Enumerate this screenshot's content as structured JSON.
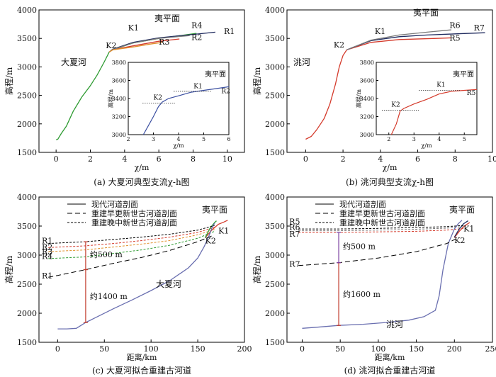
{
  "chart_data": [
    {
      "id": "a",
      "type": "line",
      "caption": "(a) 大夏河典型支流χ-h图",
      "xlabel": "χ/m",
      "ylabel": "高程/m",
      "xlim": [
        -1,
        11
      ],
      "ylim": [
        1500,
        4000
      ],
      "xticks": [
        0,
        2,
        4,
        6,
        8,
        10
      ],
      "yticks": [
        1500,
        2000,
        2500,
        3000,
        3500,
        4000
      ],
      "river_label": "大夏河",
      "surface_label": "夷平面",
      "series": [
        {
          "name": "",
          "color": "#2e9b32",
          "x": [
            0,
            0.1,
            0.3,
            0.6,
            1.0,
            1.5,
            2.0,
            2.4,
            2.8,
            3.1,
            3.3,
            4.5,
            6.0,
            7.5,
            8.2
          ],
          "y": [
            1720,
            1730,
            1830,
            1960,
            2220,
            2470,
            2670,
            2860,
            3080,
            3260,
            3300,
            3420,
            3500,
            3560,
            3590
          ]
        },
        {
          "name": "",
          "color": "#1f2a5e",
          "x": [
            3.1,
            3.3,
            4.5,
            6.0,
            8.0,
            9.3
          ],
          "y": [
            3260,
            3310,
            3430,
            3510,
            3570,
            3610
          ]
        },
        {
          "name": "",
          "color": "#d43a2b",
          "x": [
            3.1,
            3.3,
            4.5,
            6.0,
            7.2
          ],
          "y": [
            3260,
            3300,
            3370,
            3450,
            3490
          ]
        },
        {
          "name": "",
          "color": "#7a7a7a",
          "x": [
            3.1,
            3.3,
            4.5,
            6.0,
            7.8
          ],
          "y": [
            3260,
            3305,
            3420,
            3500,
            3550
          ]
        },
        {
          "name": "",
          "color": "#e08f2a",
          "x": [
            3.1,
            3.3,
            4.5,
            5.5,
            6.2
          ],
          "y": [
            3260,
            3300,
            3350,
            3400,
            3430
          ]
        }
      ],
      "labels": [
        {
          "text": "K1",
          "x": 4.2,
          "y": 3640
        },
        {
          "text": "K2",
          "x": 2.9,
          "y": 3330
        },
        {
          "text": "R1",
          "x": 9.8,
          "y": 3580
        },
        {
          "text": "R2",
          "x": 7.9,
          "y": 3470
        },
        {
          "text": "R3",
          "x": 6.0,
          "y": 3390
        },
        {
          "text": "R4",
          "x": 7.9,
          "y": 3680
        }
      ],
      "inset": {
        "xlabel": "χ/m",
        "ylabel": "高程/m",
        "xlim": [
          2,
          6
        ],
        "ylim": [
          3000,
          3800
        ],
        "xticks": [
          2,
          3,
          4,
          5,
          6
        ],
        "yticks": [
          3000,
          3200,
          3400,
          3600,
          3800
        ],
        "surface_label": "夷平面",
        "line": {
          "x": [
            2.6,
            2.8,
            3.0,
            3.2,
            3.35,
            3.6,
            4.0,
            4.5,
            5.0,
            5.5,
            6.0
          ],
          "y": [
            3000,
            3100,
            3200,
            3310,
            3360,
            3400,
            3430,
            3470,
            3490,
            3510,
            3530
          ]
        },
        "k2_ref_y": 3350,
        "k1_ref_y": 3480,
        "labels": [
          {
            "text": "K2",
            "x": 3.0,
            "y": 3390
          },
          {
            "text": "K1",
            "x": 4.6,
            "y": 3515
          },
          {
            "text": "R2",
            "x": 5.7,
            "y": 3460
          }
        ]
      }
    },
    {
      "id": "b",
      "type": "line",
      "caption": "(b) 洮河典型支流χ-h图",
      "xlabel": "χ/m",
      "ylabel": "高程/m",
      "xlim": [
        -1,
        10
      ],
      "ylim": [
        1500,
        4000
      ],
      "xticks": [
        0,
        2,
        4,
        6,
        8,
        10
      ],
      "yticks": [
        1500,
        2000,
        2500,
        3000,
        3500,
        4000
      ],
      "river_label": "洮河",
      "surface_label": "夷平面",
      "series": [
        {
          "name": "",
          "color": "#d43a2b",
          "x": [
            0,
            0.3,
            0.6,
            1.0,
            1.3,
            1.6,
            1.8,
            2.0,
            2.2,
            2.5,
            3.5,
            5.0,
            7.0,
            7.8
          ],
          "y": [
            1730,
            1780,
            1900,
            2100,
            2350,
            2700,
            3000,
            3200,
            3300,
            3330,
            3430,
            3480,
            3500,
            3510
          ]
        },
        {
          "name": "",
          "color": "#1f2a5e",
          "x": [
            2.2,
            2.5,
            3.5,
            5.0,
            6.5,
            8.0,
            9.6
          ],
          "y": [
            3300,
            3340,
            3460,
            3530,
            3560,
            3580,
            3600
          ]
        },
        {
          "name": "",
          "color": "#7a7a7a",
          "x": [
            2.2,
            2.5,
            3.5,
            5.0,
            6.5,
            7.8
          ],
          "y": [
            3300,
            3340,
            3470,
            3560,
            3610,
            3650
          ]
        }
      ],
      "labels": [
        {
          "text": "K1",
          "x": 3.7,
          "y": 3580
        },
        {
          "text": "K2",
          "x": 1.5,
          "y": 3340
        },
        {
          "text": "R6",
          "x": 7.7,
          "y": 3680
        },
        {
          "text": "R7",
          "x": 9.0,
          "y": 3640
        },
        {
          "text": "R5",
          "x": 7.7,
          "y": 3460
        }
      ],
      "inset": {
        "xlabel": "χ/m",
        "ylabel": "高程/m",
        "xlim": [
          1.5,
          5.5
        ],
        "ylim": [
          3000,
          3800
        ],
        "xticks": [
          2,
          3,
          4,
          5
        ],
        "yticks": [
          3000,
          3200,
          3400,
          3600,
          3800
        ],
        "surface_label": "夷平面",
        "line": {
          "x": [
            2.1,
            2.3,
            2.45,
            2.6,
            3.0,
            3.5,
            4.0,
            4.5,
            5.0,
            5.5
          ],
          "y": [
            3000,
            3120,
            3260,
            3290,
            3340,
            3390,
            3450,
            3480,
            3490,
            3500
          ]
        },
        "k2_ref_y": 3270,
        "k1_ref_y": 3490,
        "labels": [
          {
            "text": "K2",
            "x": 2.1,
            "y": 3310
          },
          {
            "text": "K1",
            "x": 3.9,
            "y": 3530
          },
          {
            "text": "R5",
            "x": 5.1,
            "y": 3440
          }
        ]
      }
    },
    {
      "id": "c",
      "type": "line",
      "caption": "(c) 大夏河拟合重建古河道",
      "xlabel": "距离/km",
      "ylabel": "高程/m",
      "xlim": [
        -20,
        200
      ],
      "ylim": [
        1500,
        4000
      ],
      "xticks": [
        0,
        50,
        100,
        150,
        200
      ],
      "yticks": [
        1500,
        2000,
        2500,
        3000,
        3500,
        4000
      ],
      "legend": [
        "现代河道剖面",
        "重建早更新世古河道剖面",
        "重建晚中新世古河道剖面"
      ],
      "river_label": "大夏河",
      "surface_label": "夷平面",
      "series": [
        {
          "name": "现代河道剖面",
          "color": "#6a6fb0",
          "x": [
            0,
            10,
            20,
            30,
            40,
            60,
            80,
            100,
            120,
            140,
            150,
            157,
            162,
            165,
            168
          ],
          "y": [
            1730,
            1730,
            1740,
            1840,
            1920,
            2080,
            2230,
            2390,
            2560,
            2780,
            2950,
            3150,
            3330,
            3460,
            3550
          ]
        },
        {
          "name": "重建早更新世古河道剖面",
          "color": "#000000",
          "x": [
            -10,
            0,
            30,
            60,
            90,
            120,
            150,
            165
          ],
          "y": [
            2620,
            2650,
            2750,
            2860,
            2960,
            3080,
            3230,
            3330
          ]
        },
        {
          "name": "重建晚中新世古河道剖面",
          "color": "#000000",
          "x": [
            -10,
            30,
            60,
            90,
            120,
            150,
            168
          ],
          "y": [
            3200,
            3230,
            3270,
            3310,
            3360,
            3430,
            3510
          ]
        }
      ],
      "extra_dashed": [
        {
          "color": "#d43a2b",
          "x": [
            -10,
            30,
            60,
            90,
            120,
            150,
            168
          ],
          "y": [
            3130,
            3160,
            3200,
            3250,
            3310,
            3390,
            3480
          ]
        },
        {
          "color": "#e08f2a",
          "x": [
            -10,
            30,
            60,
            90,
            120,
            150,
            168
          ],
          "y": [
            3060,
            3090,
            3140,
            3190,
            3250,
            3350,
            3440
          ]
        },
        {
          "color": "#2e9b32",
          "x": [
            -10,
            30,
            60,
            90,
            120,
            150,
            168
          ],
          "y": [
            2940,
            2970,
            3030,
            3090,
            3170,
            3290,
            3410
          ]
        }
      ],
      "end_curves": [
        {
          "color": "#d43a2b",
          "x": [
            158,
            165,
            172,
            178,
            182
          ],
          "y": [
            3300,
            3430,
            3530,
            3570,
            3600
          ]
        },
        {
          "color": "#2e9b32",
          "x": [
            158,
            163,
            168,
            170
          ],
          "y": [
            3300,
            3460,
            3560,
            3590
          ]
        }
      ],
      "bars": [
        {
          "x": 30,
          "y1": 1840,
          "y2": 2750,
          "label": "约1400 m",
          "color": "#c0392b"
        },
        {
          "x": 30,
          "y1": 2750,
          "y2": 3230,
          "label": "约500 m",
          "color": "#c0392b"
        }
      ],
      "labels": [
        {
          "text": "R1",
          "x": -17,
          "y": 3200
        },
        {
          "text": "R2",
          "x": -17,
          "y": 3090
        },
        {
          "text": "R3",
          "x": -17,
          "y": 3010
        },
        {
          "text": "R4",
          "x": -17,
          "y": 2930
        },
        {
          "text": "R1",
          "x": -17,
          "y": 2600
        },
        {
          "text": "K1",
          "x": 172,
          "y": 3370
        },
        {
          "text": "K2",
          "x": 158,
          "y": 3200
        }
      ]
    },
    {
      "id": "d",
      "type": "line",
      "caption": "(d) 洮河拟合重建古河道",
      "xlabel": "距离/km",
      "ylabel": "高程/m",
      "xlim": [
        -20,
        250
      ],
      "ylim": [
        1500,
        4000
      ],
      "xticks": [
        0,
        50,
        100,
        150,
        200,
        250
      ],
      "yticks": [
        1500,
        2000,
        2500,
        3000,
        3500,
        4000
      ],
      "legend": [
        "现代河道剖面",
        "重建早更新世古河道剖面",
        "重建晚中新世古河道剖面"
      ],
      "river_label": "洮河",
      "surface_label": "夷平面",
      "series": [
        {
          "name": "现代河道剖面",
          "color": "#6a6fb0",
          "x": [
            0,
            20,
            48,
            80,
            110,
            140,
            160,
            175,
            180,
            185,
            192,
            200,
            205,
            210
          ],
          "y": [
            1740,
            1760,
            1790,
            1810,
            1840,
            1880,
            1940,
            2050,
            2300,
            2750,
            3200,
            3450,
            3540,
            3600
          ]
        },
        {
          "name": "重建早更新世古河道剖面",
          "color": "#000000",
          "x": [
            -5,
            48,
            100,
            150,
            190,
            205
          ],
          "y": [
            2820,
            2870,
            2950,
            3060,
            3200,
            3300
          ]
        },
        {
          "name": "重建晚中新世古河道剖面",
          "color": "#000000",
          "x": [
            -5,
            48,
            100,
            150,
            190,
            212
          ],
          "y": [
            3450,
            3450,
            3460,
            3475,
            3490,
            3510
          ]
        }
      ],
      "extra_dashed": [
        {
          "color": "#d43a2b",
          "x": [
            -5,
            48,
            100,
            150,
            190,
            212
          ],
          "y": [
            3390,
            3390,
            3400,
            3410,
            3430,
            3460
          ]
        },
        {
          "color": "#7a7a7a",
          "x": [
            -5,
            48,
            100,
            150,
            190,
            212
          ],
          "y": [
            3420,
            3420,
            3430,
            3445,
            3465,
            3490
          ]
        }
      ],
      "end_curves": [
        {
          "color": "#d43a2b",
          "x": [
            200,
            207,
            214,
            220
          ],
          "y": [
            3300,
            3420,
            3510,
            3560
          ]
        },
        {
          "color": "#1f2a5e",
          "x": [
            200,
            206,
            212,
            218
          ],
          "y": [
            3310,
            3440,
            3540,
            3590
          ]
        }
      ],
      "bars": [
        {
          "x": 48,
          "y1": 1790,
          "y2": 2870,
          "label": "约1600 m",
          "color": "#c0392b"
        },
        {
          "x": 48,
          "y1": 2870,
          "y2": 3390,
          "label": "约500 m",
          "color": "#7b3fa0"
        }
      ],
      "labels": [
        {
          "text": "R5",
          "x": -17,
          "y": 3530
        },
        {
          "text": "R6",
          "x": -17,
          "y": 3430
        },
        {
          "text": "R7",
          "x": -17,
          "y": 3320
        },
        {
          "text": "R7",
          "x": -17,
          "y": 2800
        },
        {
          "text": "K1",
          "x": 212,
          "y": 3410
        },
        {
          "text": "K2",
          "x": 200,
          "y": 3210
        }
      ]
    }
  ]
}
